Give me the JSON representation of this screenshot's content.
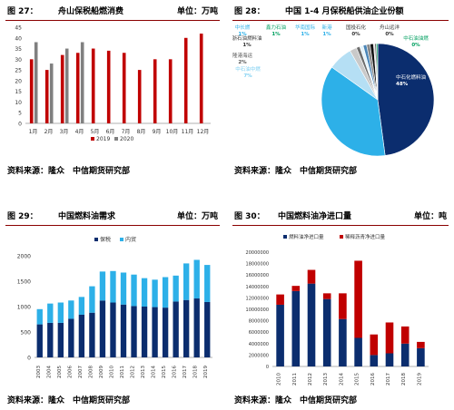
{
  "fig27": {
    "label": "图 27：",
    "title": "舟山保税船燃消费",
    "unit": "单位：万吨",
    "source": "资料来源：隆众　中信期货研究部"
  },
  "fig28": {
    "label": "图 28：",
    "title": "中国 1-4 月保税船供油企业份额",
    "source": "资料来源：隆众　中信期货研究部"
  },
  "fig29": {
    "label": "图 29：",
    "title": "中国燃料油需求",
    "unit": "单位：万吨",
    "source": "资料来源：隆众　中信期货研究部"
  },
  "fig30": {
    "label": "图 30：",
    "title": "中国燃料油净进口量",
    "unit": "单位：吨",
    "source": "资料来源：隆众　中信期货研究部"
  },
  "colors": {
    "accent": "#8a0000",
    "red": "#c00000",
    "gray": "#808080",
    "navy": "#0b2d6e",
    "sky": "#2db0e8"
  },
  "chart_data": [
    {
      "id": "fig27",
      "type": "bar",
      "categories": [
        "1月",
        "2月",
        "3月",
        "4月",
        "5月",
        "6月",
        "7月",
        "8月",
        "9月",
        "10月",
        "11月",
        "12月"
      ],
      "series": [
        {
          "name": "2019",
          "color": "#c00000",
          "values": [
            30,
            25,
            32,
            33,
            35,
            34,
            33,
            25,
            30,
            30,
            40,
            42
          ]
        },
        {
          "name": "2020",
          "color": "#808080",
          "values": [
            38,
            28,
            35,
            38,
            null,
            null,
            null,
            null,
            null,
            null,
            null,
            null
          ]
        }
      ],
      "ylim": [
        0,
        45
      ],
      "yticks": [
        0,
        5,
        10,
        15,
        20,
        25,
        30,
        35,
        40,
        45
      ],
      "legend": "bottom"
    },
    {
      "id": "fig28",
      "type": "pie",
      "slices": [
        {
          "label": "中石化燃料油",
          "value": 48,
          "value_label": "48%",
          "color": "#0b2d6e"
        },
        {
          "label": "中船燃",
          "value": 37,
          "value_label": "37%",
          "color": "#2db0e8"
        },
        {
          "label": "中石油中燃",
          "value": 7,
          "value_label": "7%",
          "color": "#b5dff4"
        },
        {
          "label": "隆港海运",
          "value": 2,
          "value_label": "2%",
          "color": "#c9c9c9"
        },
        {
          "label": "浙石油燃料油",
          "value": 1,
          "value_label": "1%",
          "color": "#6c6c6c"
        },
        {
          "label": "中长燃",
          "value": 1,
          "value_label": "1%",
          "color": "#e4f3fb"
        },
        {
          "label": "鑫力石油",
          "value": 1,
          "value_label": "1%",
          "color": "#4a86b8"
        },
        {
          "label": "华南国际",
          "value": 1,
          "value_label": "1%",
          "color": "#888888"
        },
        {
          "label": "新港",
          "value": 1,
          "value_label": "1%",
          "color": "#101010"
        },
        {
          "label": "国投石化",
          "value": 0,
          "value_label": "0%",
          "color": "#dddddd"
        },
        {
          "label": "舟山远洋",
          "value": 0,
          "value_label": "0%",
          "color": "#3c3c3c"
        },
        {
          "label": "中石油油燃",
          "value": 0,
          "value_label": "0%",
          "color": "#00a060"
        }
      ]
    },
    {
      "id": "fig29",
      "type": "bar",
      "stacked": true,
      "categories": [
        "2003",
        "2004",
        "2005",
        "2006",
        "2007",
        "2008",
        "2009",
        "2010",
        "2011",
        "2012",
        "2013",
        "2014",
        "2015",
        "2016",
        "2017",
        "2018",
        "2019"
      ],
      "series": [
        {
          "name": "保税",
          "color": "#0b2d6e",
          "values": [
            650,
            680,
            680,
            760,
            840,
            880,
            1120,
            1080,
            1040,
            1010,
            1000,
            990,
            980,
            1100,
            1130,
            1160,
            1090
          ]
        },
        {
          "name": "内贸",
          "color": "#2db0e8",
          "values": [
            300,
            380,
            400,
            360,
            350,
            520,
            570,
            620,
            630,
            620,
            560,
            540,
            600,
            510,
            720,
            760,
            730
          ]
        }
      ],
      "ylim": [
        0,
        2000
      ],
      "yticks": [
        0,
        500,
        1000,
        1500,
        2000
      ],
      "legend": "top"
    },
    {
      "id": "fig30",
      "type": "bar",
      "stacked": true,
      "categories": [
        "2010",
        "2011",
        "2012",
        "2013",
        "2014",
        "2015",
        "2016",
        "2017",
        "2018",
        "2019"
      ],
      "series": [
        {
          "name": "燃料油净进口量",
          "color": "#0b2d6e",
          "values": [
            10800000,
            13200000,
            14500000,
            11800000,
            8300000,
            5000000,
            2000000,
            2300000,
            4000000,
            3200000
          ]
        },
        {
          "name": "稀释沥青净进口量",
          "color": "#c00000",
          "values": [
            1800000,
            900000,
            2400000,
            1000000,
            4500000,
            13500000,
            3600000,
            5400000,
            3000000,
            1100000
          ]
        }
      ],
      "ylim": [
        0,
        20000000
      ],
      "yticks": [
        0,
        2000000,
        4000000,
        6000000,
        8000000,
        10000000,
        12000000,
        14000000,
        16000000,
        18000000,
        20000000
      ],
      "legend": "top"
    }
  ]
}
